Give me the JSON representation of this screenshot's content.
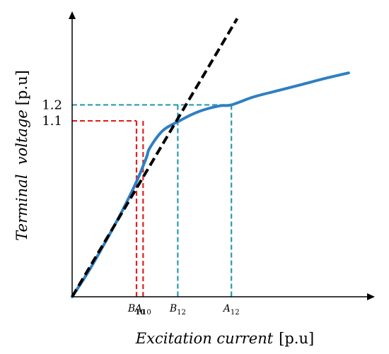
{
  "chart_data": {
    "type": "line",
    "xlabel_italic": "Excitation current",
    "xlabel_unit": "[p.u]",
    "ylabel_italic": "Terminal  voltage",
    "ylabel_unit": "[p.u]",
    "y_ticks": [
      {
        "label": "1.1",
        "value": 1.1
      },
      {
        "label": "1.2",
        "value": 1.2
      }
    ],
    "x_marks": [
      {
        "main": "B",
        "sub": "10",
        "bold_sub": true,
        "value": 0.78
      },
      {
        "main": "A",
        "sub": "10",
        "bold_sub": false,
        "value": 0.86
      },
      {
        "main": "B",
        "sub": "12",
        "bold_sub": false,
        "value": 1.28
      },
      {
        "main": "A",
        "sub": "12",
        "bold_sub": false,
        "value": 1.93
      }
    ],
    "xlim": [
      0,
      3.6
    ],
    "ylim": [
      0,
      1.75
    ],
    "series": [
      {
        "kind": "magnetization-curve",
        "color": "#2f7fc1",
        "points": [
          [
            0,
            0
          ],
          [
            0.2,
            0.16
          ],
          [
            0.4,
            0.34
          ],
          [
            0.6,
            0.53
          ],
          [
            0.78,
            0.72
          ],
          [
            0.9,
            0.87
          ],
          [
            0.94,
            0.93
          ],
          [
            1.1,
            1.04
          ],
          [
            1.3,
            1.1
          ],
          [
            1.45,
            1.14
          ],
          [
            1.6,
            1.17
          ],
          [
            1.8,
            1.195
          ],
          [
            1.93,
            1.2
          ],
          [
            2.2,
            1.25
          ],
          [
            2.5,
            1.29
          ],
          [
            2.8,
            1.33
          ],
          [
            3.1,
            1.37
          ],
          [
            3.35,
            1.4
          ]
        ]
      },
      {
        "kind": "air-gap-line",
        "color": "#000000",
        "points": [
          [
            0,
            0
          ],
          [
            2.0,
            1.74
          ]
        ]
      }
    ],
    "guides": [
      {
        "color": "#e02020",
        "x": 0.78,
        "y": 1.1,
        "horizontal": true
      },
      {
        "color": "#e02020",
        "x": 0.86,
        "y": 1.1,
        "horizontal": false
      },
      {
        "color": "#2a9bb0",
        "x": 1.28,
        "y": 1.2,
        "horizontal": false
      },
      {
        "color": "#2a9bb0",
        "x": 1.93,
        "y": 1.2,
        "horizontal": true
      }
    ]
  }
}
